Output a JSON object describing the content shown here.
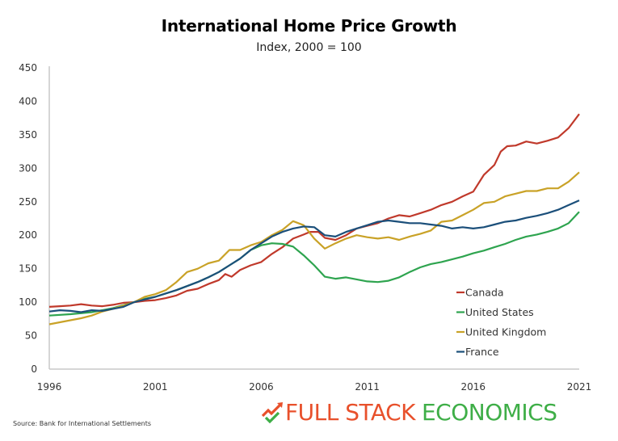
{
  "chart_data": {
    "type": "line",
    "title": "International Home Price Growth",
    "subtitle": "Index, 2000 = 100",
    "xlabel": "",
    "ylabel": "",
    "xlim": [
      1996,
      2021
    ],
    "ylim": [
      0,
      450
    ],
    "x_ticks": [
      1996,
      2001,
      2006,
      2011,
      2016,
      2021
    ],
    "x_tick_labels": [
      "1996",
      "2001",
      "2006",
      "2011",
      "2016",
      "2021"
    ],
    "y_ticks": [
      0,
      50,
      100,
      150,
      200,
      250,
      300,
      350,
      400,
      450
    ],
    "y_tick_labels": [
      "0",
      "50",
      "100",
      "150",
      "200",
      "250",
      "300",
      "350",
      "400",
      "450"
    ],
    "grid": false,
    "legend_position": "bottom-right",
    "series": [
      {
        "name": "Canada",
        "color": "#c0392b",
        "x": [
          1996,
          1996.5,
          1997,
          1997.5,
          1998,
          1998.5,
          1999,
          1999.5,
          2000,
          2000.5,
          2001,
          2001.5,
          2002,
          2002.5,
          2003,
          2003.5,
          2004,
          2004.3,
          2004.6,
          2005,
          2005.5,
          2006,
          2006.5,
          2007,
          2007.5,
          2008,
          2008.3,
          2008.7,
          2009,
          2009.5,
          2010,
          2010.5,
          2011,
          2011.5,
          2012,
          2012.5,
          2013,
          2013.5,
          2014,
          2014.5,
          2015,
          2015.5,
          2016,
          2016.5,
          2017,
          2017.3,
          2017.6,
          2018,
          2018.5,
          2019,
          2019.5,
          2020,
          2020.5,
          2021
        ],
        "values": [
          93,
          94,
          95,
          97,
          95,
          94,
          96,
          99,
          100,
          102,
          103,
          106,
          110,
          117,
          120,
          127,
          133,
          142,
          138,
          148,
          155,
          160,
          172,
          182,
          195,
          201,
          205,
          205,
          196,
          193,
          200,
          210,
          214,
          218,
          225,
          230,
          228,
          233,
          238,
          245,
          250,
          258,
          265,
          290,
          305,
          325,
          333,
          334,
          340,
          337,
          341,
          346,
          360,
          381
        ]
      },
      {
        "name": "United States",
        "color": "#2ea44f",
        "x": [
          1996,
          1997,
          1998,
          1999,
          2000,
          2000.5,
          2001,
          2001.5,
          2002,
          2002.5,
          2003,
          2003.5,
          2004,
          2004.5,
          2005,
          2005.5,
          2006,
          2006.5,
          2007,
          2007.5,
          2008,
          2008.5,
          2009,
          2009.5,
          2010,
          2010.5,
          2011,
          2011.5,
          2012,
          2012.5,
          2013,
          2013.5,
          2014,
          2014.5,
          2015,
          2015.5,
          2016,
          2016.5,
          2017,
          2017.5,
          2018,
          2018.5,
          2019,
          2019.5,
          2020,
          2020.5,
          2021
        ],
        "values": [
          80,
          82,
          85,
          91,
          100,
          105,
          108,
          113,
          118,
          124,
          130,
          137,
          145,
          155,
          165,
          178,
          185,
          188,
          187,
          183,
          170,
          155,
          138,
          135,
          137,
          134,
          131,
          130,
          132,
          137,
          145,
          152,
          157,
          160,
          164,
          168,
          173,
          177,
          182,
          187,
          193,
          198,
          201,
          205,
          210,
          218,
          235
        ]
      },
      {
        "name": "United Kingdom",
        "color": "#c9a227",
        "x": [
          1996,
          1996.5,
          1997,
          1997.5,
          1998,
          1998.5,
          1999,
          1999.5,
          2000,
          2000.5,
          2001,
          2001.5,
          2002,
          2002.5,
          2003,
          2003.5,
          2004,
          2004.5,
          2005,
          2005.5,
          2006,
          2006.5,
          2007,
          2007.5,
          2008,
          2008.5,
          2009,
          2009.5,
          2010,
          2010.5,
          2011,
          2011.5,
          2012,
          2012.5,
          2013,
          2013.5,
          2014,
          2014.5,
          2015,
          2015.5,
          2016,
          2016.5,
          2017,
          2017.5,
          2018,
          2018.5,
          2019,
          2019.5,
          2020,
          2020.5,
          2021
        ],
        "values": [
          67,
          70,
          73,
          76,
          80,
          86,
          90,
          95,
          100,
          108,
          112,
          118,
          130,
          145,
          150,
          158,
          162,
          178,
          178,
          185,
          190,
          200,
          208,
          221,
          215,
          195,
          180,
          188,
          195,
          200,
          197,
          195,
          197,
          193,
          198,
          202,
          207,
          220,
          222,
          230,
          238,
          248,
          250,
          258,
          262,
          266,
          266,
          270,
          270,
          280,
          294
        ]
      },
      {
        "name": "France",
        "color": "#1b4f7a",
        "x": [
          1996,
          1996.5,
          1997,
          1997.5,
          1998,
          1998.5,
          1999,
          1999.5,
          2000,
          2000.5,
          2001,
          2001.5,
          2002,
          2002.5,
          2003,
          2003.5,
          2004,
          2004.5,
          2005,
          2005.5,
          2006,
          2006.5,
          2007,
          2007.5,
          2008,
          2008.5,
          2009,
          2009.5,
          2010,
          2010.5,
          2011,
          2011.5,
          2012,
          2012.5,
          2013,
          2013.5,
          2014,
          2014.5,
          2015,
          2015.5,
          2016,
          2016.5,
          2017,
          2017.5,
          2018,
          2018.5,
          2019,
          2019.5,
          2020,
          2020.5,
          2021
        ],
        "values": [
          86,
          88,
          87,
          85,
          88,
          87,
          90,
          93,
          100,
          104,
          108,
          113,
          118,
          124,
          130,
          137,
          145,
          155,
          165,
          178,
          188,
          198,
          205,
          210,
          213,
          212,
          200,
          198,
          205,
          210,
          215,
          220,
          222,
          220,
          218,
          218,
          216,
          214,
          210,
          212,
          210,
          212,
          216,
          220,
          222,
          226,
          229,
          233,
          238,
          245,
          252
        ]
      }
    ]
  },
  "source_note": "Source: Bank for International Settlements",
  "logo": {
    "part1": "FULL STACK",
    "part2": "ECONOMICS",
    "color1": "#e8502b",
    "color2": "#3eae47",
    "icon": "trend-up-check-icon"
  }
}
